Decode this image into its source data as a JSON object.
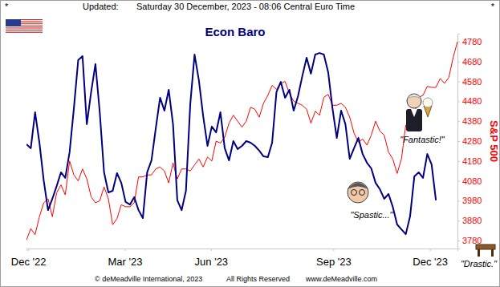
{
  "chart_data": {
    "type": "line",
    "title": "Econ Baro",
    "header": [
      "*",
      "Updated:",
      "Saturday 30 December, 2023 - 08:06 Central Euro Time",
      "*"
    ],
    "footer": [
      "© deMeadville International, 2023",
      "All Rights Reserved",
      "www.deMeadville.com"
    ],
    "annotations": [
      "\"Fantastic!\"",
      "\"Spastic...\"",
      "\"Drastic.\""
    ],
    "y_axis_label": "S&P 500",
    "grid": false,
    "tick_labels": true,
    "x": [
      0,
      2.5,
      5,
      7.5,
      10,
      12.5,
      15,
      17.5,
      20,
      22.5,
      25,
      27.5,
      30,
      32.5,
      35,
      37.5,
      40,
      42.5,
      45,
      47.5,
      50,
      52.5,
      55,
      57.5,
      60,
      62.5,
      65,
      67.5,
      70,
      72.5,
      75,
      77.5,
      80,
      82.5,
      85,
      87.5,
      90,
      92.5,
      95,
      97.5,
      100,
      102.5,
      105,
      107.5,
      110,
      112.5,
      115,
      117.5,
      120,
      122.5,
      125,
      127.5,
      130,
      132.5,
      135,
      137.5,
      140,
      142.5,
      145,
      147.5,
      150,
      152.5,
      155,
      157.5,
      160,
      162.5,
      165,
      167.5,
      170,
      172.5,
      175,
      177.5,
      180,
      182.5,
      185,
      187.5,
      190,
      192.5,
      195,
      197.5,
      200,
      202.5,
      205,
      207.5,
      210,
      212.5,
      215,
      217.5,
      220,
      222.5,
      225,
      227.5,
      230,
      232.5,
      235,
      237.5,
      240,
      242.5,
      245,
      247.5,
      250
    ],
    "xlim": [
      0,
      250
    ],
    "xticks": [
      {
        "value": 1,
        "label": "Dec '22"
      },
      {
        "value": 57,
        "label": "Mar '23"
      },
      {
        "value": 107,
        "label": "Jun '23"
      },
      {
        "value": 178,
        "label": "Sep '23"
      },
      {
        "value": 234,
        "label": "Dec '23"
      }
    ],
    "ylim": [
      3740,
      4820
    ],
    "yticks": [
      3780,
      3880,
      3980,
      4080,
      4180,
      4280,
      4380,
      4480,
      4580,
      4680,
      4780
    ],
    "series": [
      {
        "color": "#000080",
        "values": [
          4264,
          4244,
          4425,
          4272,
          4082,
          3933,
          3990,
          4054,
          4123,
          4095,
          4224,
          4445,
          4687,
          4707,
          4365,
          4526,
          4667,
          4425,
          4123,
          4022,
          4030,
          4119,
          4070,
          3974,
          3961,
          3998,
          3933,
          3893,
          4123,
          4183,
          4344,
          4498,
          4433,
          4538,
          4365,
          3982,
          3933,
          4030,
          4465,
          4715,
          4586,
          4405,
          4256,
          4353,
          4324,
          4425,
          4244,
          4183,
          4280,
          4240,
          4256,
          4280,
          4272,
          4256,
          4232,
          4203,
          4199,
          4272,
          4526,
          4578,
          4498,
          4538,
          4433,
          4506,
          4607,
          4699,
          4619,
          4715,
          4723,
          4715,
          4627,
          4445,
          4296,
          4433,
          4365,
          4191,
          4244,
          4296,
          4215,
          4171,
          4143,
          4070,
          4038,
          3990,
          4014,
          3949,
          3861,
          3836,
          3812,
          3901,
          4103,
          4123,
          4095,
          4215,
          4163,
          3982,
          null,
          null,
          null,
          null,
          null
        ]
      },
      {
        "color": "#ff0000",
        "values": [
          3783,
          3840,
          3810,
          3900,
          3970,
          3990,
          3900,
          4020,
          4060,
          4010,
          4180,
          4110,
          4080,
          4140,
          4090,
          4000,
          3970,
          3980,
          4050,
          3990,
          3860,
          3890,
          3960,
          3950,
          3950,
          3970,
          4100,
          4100,
          4110,
          4110,
          4140,
          4150,
          4130,
          4070,
          4170,
          4090,
          4140,
          4140,
          4130,
          4160,
          4190,
          4150,
          4200,
          4180,
          4280,
          4270,
          4300,
          4370,
          4410,
          4380,
          4350,
          4380,
          4450,
          4440,
          4400,
          4470,
          4510,
          4560,
          4540,
          4570,
          4580,
          4520,
          4480,
          4470,
          4460,
          4440,
          4370,
          4430,
          4410,
          4500,
          4515,
          4460,
          4460,
          4470,
          4450,
          4400,
          4320,
          4275,
          4290,
          4260,
          4310,
          4380,
          4330,
          4310,
          4225,
          4190,
          4117,
          4190,
          4360,
          4380,
          4415,
          4500,
          4510,
          4555,
          4550,
          4550,
          4595,
          4570,
          4600,
          4700,
          4780
        ]
      }
    ]
  }
}
